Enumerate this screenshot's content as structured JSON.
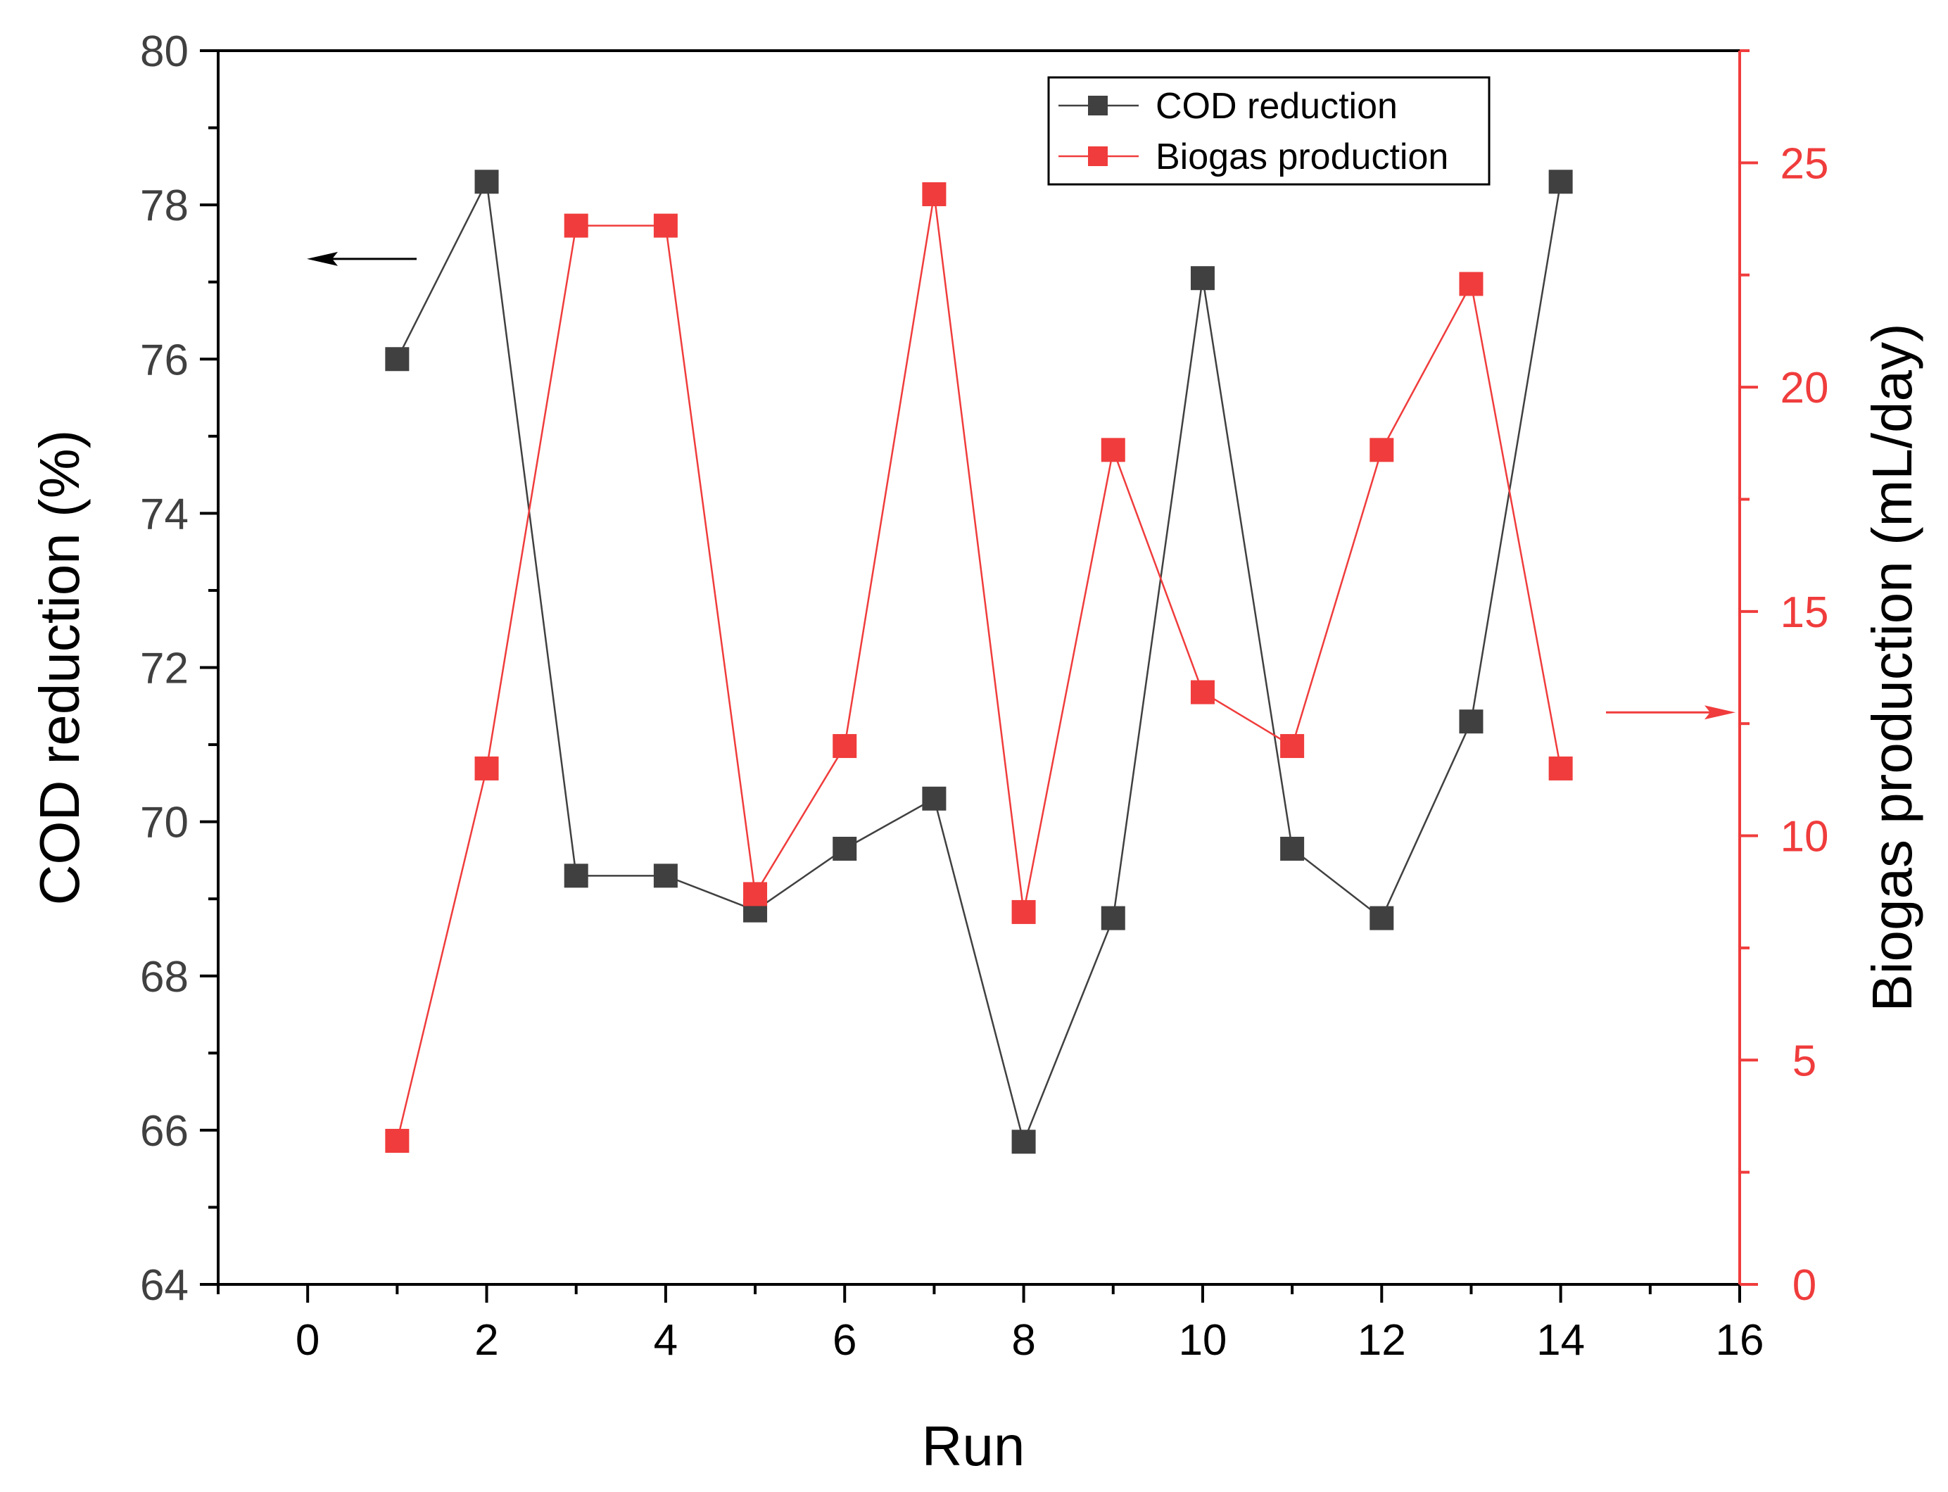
{
  "chart_data": {
    "type": "line",
    "title": "",
    "xlabel": "Run",
    "ylabel_left": "COD reduction (%)",
    "ylabel_right": "Biogas production (mL/day)",
    "xlim": [
      -1,
      16
    ],
    "ylim_left": [
      64,
      80
    ],
    "ylim_right": [
      0,
      27.5
    ],
    "x_ticks": [
      0,
      2,
      4,
      6,
      8,
      10,
      12,
      14,
      16
    ],
    "y_left_ticks": [
      64,
      66,
      68,
      70,
      72,
      74,
      76,
      78,
      80
    ],
    "y_right_ticks": [
      0,
      5,
      10,
      15,
      20,
      25
    ],
    "grid": false,
    "legend_position": "top-right",
    "x": [
      1,
      2,
      3,
      4,
      5,
      6,
      7,
      8,
      9,
      10,
      11,
      12,
      13,
      14
    ],
    "series": [
      {
        "name": "COD reduction",
        "axis": "left",
        "color": "#404040",
        "marker": "square",
        "values": [
          76.0,
          78.3,
          69.3,
          69.3,
          68.85,
          69.65,
          70.3,
          65.85,
          68.75,
          77.05,
          69.65,
          68.75,
          71.3,
          78.3
        ]
      },
      {
        "name": "Biogas production",
        "axis": "right",
        "color": "#f03c3c",
        "marker": "square",
        "values": [
          3.2,
          11.5,
          23.6,
          23.6,
          8.7,
          12.0,
          24.3,
          8.3,
          18.6,
          13.2,
          12.0,
          18.6,
          22.3,
          11.5
        ]
      }
    ],
    "annotations": [
      {
        "type": "arrow",
        "direction": "left",
        "points_to_axis": "left",
        "color": "#000000"
      },
      {
        "type": "arrow",
        "direction": "right",
        "points_to_axis": "right",
        "color": "#f03c3c"
      }
    ],
    "axis_colors": {
      "left": "#000000",
      "right": "#f03c3c",
      "bottom": "#000000"
    }
  }
}
